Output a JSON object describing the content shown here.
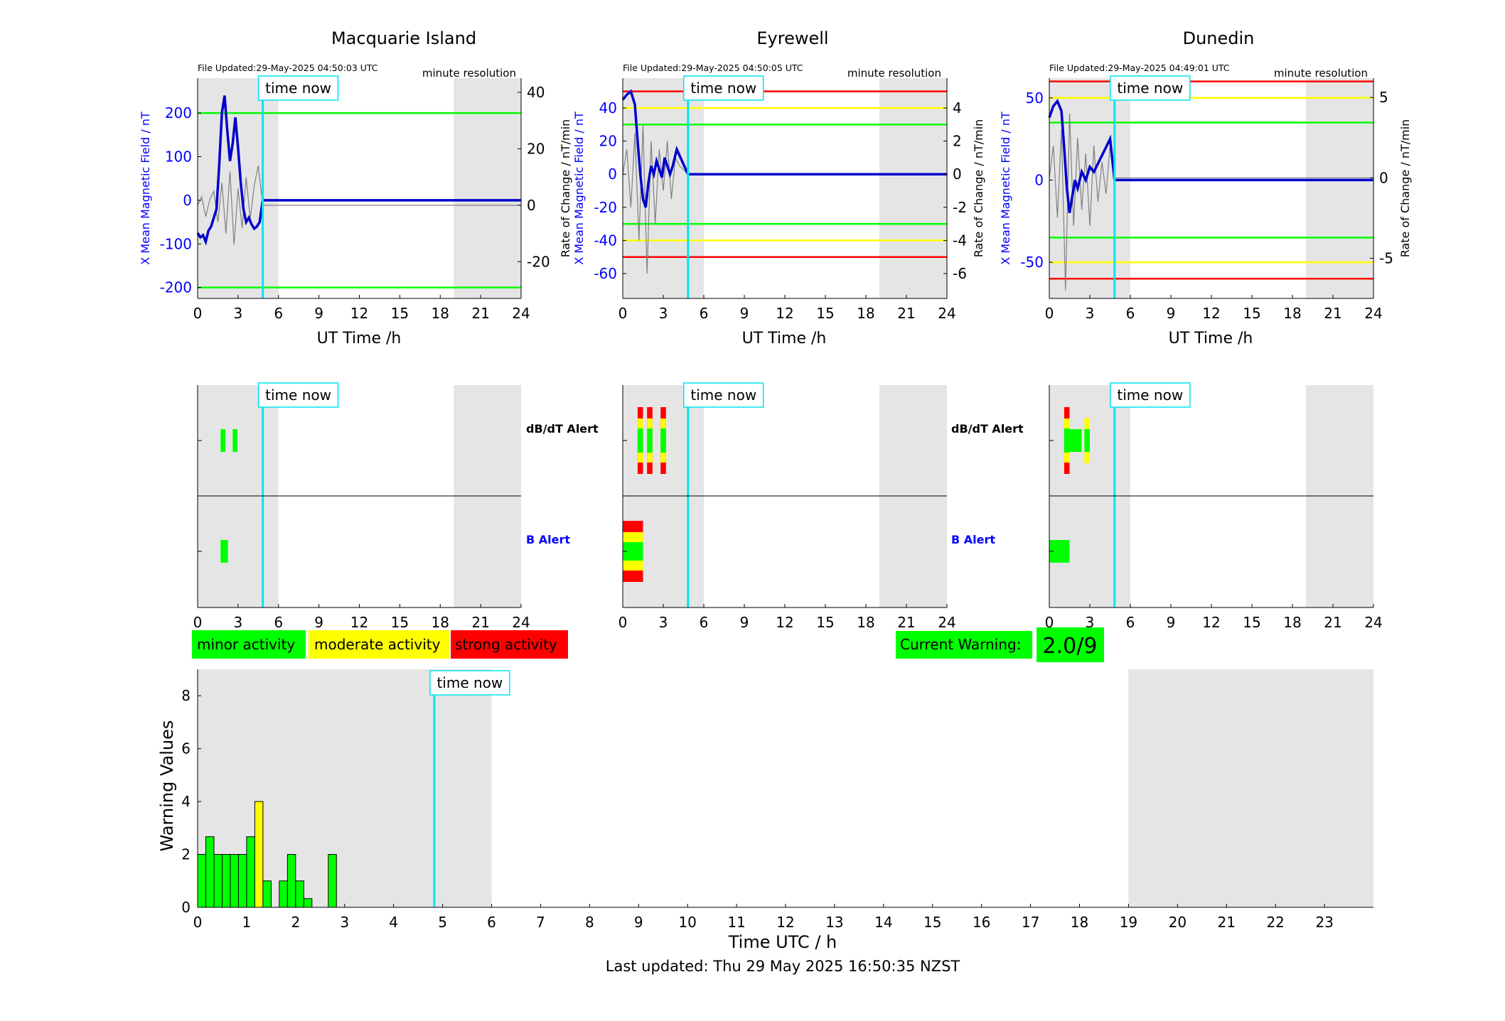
{
  "title_time_now": "time now",
  "legend": {
    "minor": {
      "label": "minor activity",
      "color": "#00ff00"
    },
    "moderate": {
      "label": "moderate activity",
      "color": "#ffff00"
    },
    "strong": {
      "label": "strong activity",
      "color": "#ff0000"
    }
  },
  "current_warning": {
    "label": "Current Warning:",
    "value": "2.0/9"
  },
  "footer": {
    "last_updated": "Last updated: Thu 29 May 2025 16:50:35 NZST"
  },
  "colors": {
    "field_line": "#0000cc",
    "rate_line": "#808080",
    "time_now": "#00e5ee",
    "night_shade": "#e5e5e5",
    "axis_blue": "#0000ff"
  },
  "time_now_hours": 4.83,
  "chart_data": [
    {
      "type": "line",
      "station": "Macquarie Island",
      "file_updated": "File Updated:29-May-2025 04:50:03 UTC",
      "resolution": "minute resolution",
      "xlabel": "UT Time /h",
      "ylabel_left": "X Mean Magnetic Field / nT",
      "ylabel_right": "",
      "xlim": [
        0,
        24
      ],
      "xticks": [
        0,
        3,
        6,
        9,
        12,
        15,
        18,
        21,
        24
      ],
      "ylim_left": [
        -225,
        280
      ],
      "yticks_left": [
        -200,
        -100,
        0,
        100,
        200
      ],
      "ylim_right": [
        -33,
        45
      ],
      "yticks_right": [
        -20,
        0,
        20,
        40
      ],
      "shade": [
        [
          0,
          6
        ],
        [
          19,
          24
        ]
      ],
      "thresholds": [
        {
          "value": 200,
          "color": "#00ff00"
        },
        {
          "value": -200,
          "color": "#00ff00"
        }
      ],
      "field_series": {
        "x": [
          0,
          0.2,
          0.4,
          0.6,
          0.8,
          1.0,
          1.2,
          1.4,
          1.6,
          1.8,
          2.0,
          2.2,
          2.4,
          2.6,
          2.8,
          3.0,
          3.2,
          3.4,
          3.6,
          3.8,
          4.0,
          4.2,
          4.4,
          4.6,
          4.83,
          24
        ],
        "y": [
          -75,
          -85,
          -80,
          -95,
          -70,
          -60,
          -40,
          -20,
          80,
          200,
          240,
          160,
          90,
          130,
          190,
          120,
          40,
          -20,
          -50,
          -40,
          -55,
          -65,
          -60,
          -50,
          0,
          0
        ]
      },
      "rate_series": {
        "x": [
          0,
          0.3,
          0.6,
          0.9,
          1.2,
          1.5,
          1.8,
          2.1,
          2.4,
          2.7,
          3.0,
          3.3,
          3.6,
          3.9,
          4.2,
          4.5,
          4.83,
          24
        ],
        "y": [
          0,
          3,
          -4,
          2,
          5,
          -6,
          8,
          -10,
          12,
          -14,
          6,
          -8,
          10,
          -5,
          7,
          14,
          0,
          0
        ]
      }
    },
    {
      "type": "line",
      "station": "Eyrewell",
      "file_updated": "File Updated:29-May-2025 04:50:05 UTC",
      "resolution": "minute resolution",
      "xlabel": "UT Time /h",
      "ylabel_left": "X Mean Magnetic Field / nT",
      "ylabel_right": "Rate of Change / nT/min",
      "ylabel_left_outer": "Rate of Change / nT/min",
      "xlim": [
        0,
        24
      ],
      "xticks": [
        0,
        3,
        6,
        9,
        12,
        15,
        18,
        21,
        24
      ],
      "ylim_left": [
        -75,
        58
      ],
      "yticks_left": [
        -60,
        -40,
        -20,
        0,
        20,
        40
      ],
      "ylim_right": [
        -7.5,
        5.8
      ],
      "yticks_right": [
        -6,
        -4,
        -2,
        0,
        2,
        4
      ],
      "shade": [
        [
          0,
          6
        ],
        [
          19,
          24
        ]
      ],
      "thresholds": [
        {
          "value": 50,
          "color": "#ff0000"
        },
        {
          "value": 40,
          "color": "#ffff00"
        },
        {
          "value": 30,
          "color": "#00ff00"
        },
        {
          "value": -30,
          "color": "#00ff00"
        },
        {
          "value": -40,
          "color": "#ffff00"
        },
        {
          "value": -50,
          "color": "#ff0000"
        }
      ],
      "field_series": {
        "x": [
          0,
          0.3,
          0.6,
          0.9,
          1.1,
          1.3,
          1.5,
          1.7,
          1.9,
          2.1,
          2.3,
          2.5,
          2.7,
          2.9,
          3.1,
          3.3,
          3.5,
          3.7,
          4.0,
          4.83,
          24
        ],
        "y": [
          45,
          48,
          50,
          42,
          20,
          0,
          -15,
          -20,
          -5,
          5,
          0,
          8,
          3,
          -2,
          10,
          5,
          0,
          5,
          15,
          0,
          0
        ]
      },
      "rate_series": {
        "x": [
          0,
          0.3,
          0.6,
          0.9,
          1.2,
          1.5,
          1.8,
          2.1,
          2.4,
          2.7,
          3.0,
          3.3,
          3.6,
          3.9,
          4.2,
          4.83,
          24
        ],
        "y": [
          0,
          1.5,
          -2,
          2.5,
          -4,
          3,
          -6,
          2,
          -3,
          1.5,
          -1,
          2,
          -1.5,
          1,
          0.5,
          0,
          0
        ]
      }
    },
    {
      "type": "line",
      "station": "Dunedin",
      "file_updated": "File Updated:29-May-2025 04:49:01 UTC",
      "resolution": "minute resolution",
      "xlabel": "UT Time /h",
      "ylabel_left": "X Mean Magnetic Field / nT",
      "ylabel_right": "Rate of Change / nT/min",
      "xlim": [
        0,
        24
      ],
      "xticks": [
        0,
        3,
        6,
        9,
        12,
        15,
        18,
        21,
        24
      ],
      "ylim_left": [
        -72,
        62
      ],
      "yticks_left": [
        -50,
        0,
        50
      ],
      "ylim_right": [
        -7.5,
        6.2
      ],
      "yticks_right": [
        -5,
        0,
        5
      ],
      "shade": [
        [
          0,
          6
        ],
        [
          19,
          24
        ]
      ],
      "thresholds": [
        {
          "value": 60,
          "color": "#ff0000"
        },
        {
          "value": 50,
          "color": "#ffff00"
        },
        {
          "value": 35,
          "color": "#00ff00"
        },
        {
          "value": -35,
          "color": "#00ff00"
        },
        {
          "value": -50,
          "color": "#ffff00"
        },
        {
          "value": -60,
          "color": "#ff0000"
        }
      ],
      "field_series": {
        "x": [
          0,
          0.3,
          0.6,
          0.9,
          1.1,
          1.3,
          1.5,
          1.7,
          1.9,
          2.1,
          2.4,
          2.7,
          3.0,
          3.3,
          3.6,
          3.9,
          4.2,
          4.5,
          4.83,
          24
        ],
        "y": [
          38,
          45,
          48,
          42,
          20,
          -5,
          -20,
          -10,
          0,
          -5,
          5,
          0,
          8,
          5,
          10,
          15,
          20,
          25,
          0,
          0
        ]
      },
      "rate_series": {
        "x": [
          0,
          0.3,
          0.6,
          0.9,
          1.2,
          1.5,
          1.8,
          2.1,
          2.4,
          2.7,
          3.0,
          3.3,
          3.6,
          3.9,
          4.2,
          4.5,
          4.83,
          24
        ],
        "y": [
          0,
          2,
          -2.5,
          3,
          -7,
          4,
          -3,
          2.5,
          -2,
          1.5,
          -3,
          2,
          -1.5,
          1,
          -1,
          2,
          0,
          0
        ]
      }
    },
    {
      "type": "bar",
      "name": "alerts",
      "xticks": [
        0,
        3,
        6,
        9,
        12,
        15,
        18,
        21,
        24
      ],
      "xlim": [
        0,
        24
      ],
      "shade": [
        [
          0,
          6
        ],
        [
          19,
          24
        ]
      ],
      "row_labels": {
        "dbdt": "dB/dT Alert",
        "b": "B Alert"
      },
      "panels": [
        {
          "station": "Macquarie Island",
          "dbdt": [
            {
              "t0": 1.7,
              "t1": 2.05,
              "level": "minor"
            },
            {
              "t0": 2.6,
              "t1": 2.95,
              "level": "minor"
            }
          ],
          "b": [
            {
              "t0": 1.7,
              "t1": 2.25,
              "level": "minor"
            }
          ]
        },
        {
          "station": "Eyrewell",
          "dbdt": [
            {
              "t0": 1.1,
              "t1": 1.5,
              "level": "strong"
            },
            {
              "t0": 1.8,
              "t1": 2.2,
              "level": "strong"
            },
            {
              "t0": 2.8,
              "t1": 3.2,
              "level": "strong"
            }
          ],
          "b": [
            {
              "t0": 0,
              "t1": 1.5,
              "level": "strong_b"
            }
          ]
        },
        {
          "station": "Dunedin",
          "dbdt": [
            {
              "t0": 1.1,
              "t1": 1.5,
              "level": "strong"
            },
            {
              "t0": 1.5,
              "t1": 2.4,
              "level": "minor"
            },
            {
              "t0": 2.6,
              "t1": 3.0,
              "level": "moderate"
            }
          ],
          "b": [
            {
              "t0": 0,
              "t1": 1.5,
              "level": "minor"
            }
          ]
        }
      ]
    },
    {
      "type": "bar",
      "name": "warning-values",
      "xlabel": "Time UTC / h",
      "ylabel": "Warning Values",
      "xlim": [
        0,
        24
      ],
      "xticks": [
        0,
        1,
        2,
        3,
        4,
        5,
        6,
        7,
        8,
        9,
        10,
        11,
        12,
        13,
        14,
        15,
        16,
        17,
        18,
        19,
        20,
        21,
        22,
        23
      ],
      "ylim": [
        0,
        9
      ],
      "yticks": [
        0,
        2,
        4,
        6,
        8
      ],
      "shade": [
        [
          0,
          6
        ],
        [
          19,
          24
        ]
      ],
      "bar_width": 0.1667,
      "bars": [
        {
          "x": 0.0,
          "value": 2.0,
          "level": "minor"
        },
        {
          "x": 0.1667,
          "value": 2.67,
          "level": "minor"
        },
        {
          "x": 0.3333,
          "value": 2.0,
          "level": "minor"
        },
        {
          "x": 0.5,
          "value": 2.0,
          "level": "minor"
        },
        {
          "x": 0.6667,
          "value": 2.0,
          "level": "minor"
        },
        {
          "x": 0.8333,
          "value": 2.0,
          "level": "minor"
        },
        {
          "x": 1.0,
          "value": 2.67,
          "level": "minor"
        },
        {
          "x": 1.1667,
          "value": 4.0,
          "level": "moderate"
        },
        {
          "x": 1.3333,
          "value": 1.0,
          "level": "minor"
        },
        {
          "x": 1.6667,
          "value": 1.0,
          "level": "minor"
        },
        {
          "x": 1.8333,
          "value": 2.0,
          "level": "minor"
        },
        {
          "x": 2.0,
          "value": 1.0,
          "level": "minor"
        },
        {
          "x": 2.1667,
          "value": 0.33,
          "level": "minor"
        },
        {
          "x": 2.6667,
          "value": 2.0,
          "level": "minor"
        }
      ]
    }
  ]
}
